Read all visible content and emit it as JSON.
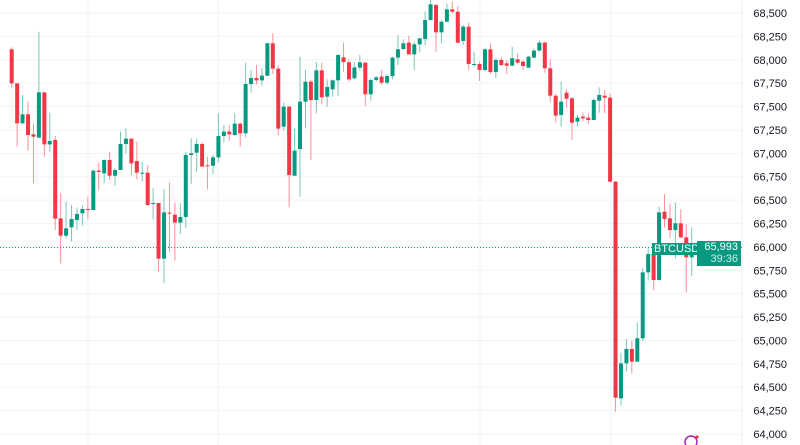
{
  "chart_data": {
    "type": "candlestick",
    "symbol": "BTCUSD",
    "last_price": "65,993",
    "countdown": "39:36",
    "ylim": [
      64000,
      68500
    ],
    "yticks": [
      64000,
      64250,
      64500,
      64750,
      65000,
      65250,
      65500,
      65750,
      66000,
      66250,
      66500,
      66750,
      67000,
      67250,
      67500,
      67750,
      68000,
      68250,
      68500
    ],
    "ytick_labels": [
      "64,000",
      "64,250",
      "64,500",
      "64,750",
      "65,000",
      "65,250",
      "65,500",
      "65,750",
      "66,000",
      "66,250",
      "66,500",
      "66,750",
      "67,000",
      "67,250",
      "67,500",
      "67,750",
      "68,000",
      "68,250",
      "68,500"
    ],
    "grid": true,
    "colors": {
      "up": "#089981",
      "down": "#f23645",
      "grid": "#f2f3f5",
      "text": "#131722"
    },
    "ohlc": [
      [
        68112,
        67748,
        68133,
        67705
      ],
      [
        67748,
        67321,
        67748,
        67071
      ],
      [
        67321,
        67417,
        67624,
        67314
      ],
      [
        67417,
        67196,
        67552,
        67029
      ],
      [
        67203,
        67178,
        67314,
        66680
      ],
      [
        67168,
        67652,
        68300,
        67160
      ],
      [
        67652,
        67096,
        67652,
        66964
      ],
      [
        67096,
        67132,
        67435,
        67018
      ],
      [
        67143,
        66302,
        67185,
        66180
      ],
      [
        66305,
        66120,
        66573,
        65824
      ],
      [
        66120,
        66198,
        66483,
        66091
      ],
      [
        66209,
        66298,
        66448,
        66056
      ],
      [
        66287,
        66352,
        66423,
        66180
      ],
      [
        66359,
        66405,
        66448,
        66227
      ],
      [
        66405,
        66394,
        66537,
        66295
      ],
      [
        66394,
        66815,
        66822,
        66387
      ],
      [
        66815,
        66801,
        66900,
        66608
      ],
      [
        66786,
        66929,
        66936,
        66680
      ],
      [
        66929,
        66761,
        67018,
        66715
      ],
      [
        66761,
        66822,
        66840,
        66655
      ],
      [
        66822,
        67100,
        67232,
        66822
      ],
      [
        67100,
        67157,
        67267,
        67000
      ],
      [
        67157,
        66893,
        67160,
        66761
      ],
      [
        66918,
        66793,
        67125,
        66722
      ],
      [
        66786,
        66793,
        66904,
        66697
      ],
      [
        66793,
        66448,
        66875,
        66441
      ],
      [
        66458,
        66469,
        66626,
        66295
      ],
      [
        66469,
        65874,
        66473,
        65735
      ],
      [
        65874,
        66369,
        66619,
        65611
      ],
      [
        66366,
        66355,
        66690,
        65949
      ],
      [
        66344,
        66259,
        66473,
        65853
      ],
      [
        66259,
        66320,
        66466,
        66138
      ],
      [
        66320,
        66982,
        67018,
        66206
      ],
      [
        66982,
        67000,
        67160,
        66669
      ],
      [
        67007,
        67100,
        67160,
        66797
      ],
      [
        67100,
        66858,
        67114,
        66858
      ],
      [
        66872,
        66868,
        66964,
        66615
      ],
      [
        66868,
        66957,
        66982,
        66779
      ],
      [
        66957,
        67185,
        67428,
        66904
      ],
      [
        67185,
        67232,
        67303,
        67114
      ],
      [
        67232,
        67203,
        67296,
        67135
      ],
      [
        67196,
        67317,
        67428,
        67185
      ],
      [
        67317,
        67214,
        67328,
        67071
      ],
      [
        67214,
        67741,
        67969,
        67171
      ],
      [
        67741,
        67805,
        67891,
        67648
      ],
      [
        67805,
        67780,
        67944,
        67738
      ],
      [
        67780,
        67830,
        67909,
        67723
      ],
      [
        67830,
        68176,
        68183,
        67827
      ],
      [
        68176,
        67905,
        68283,
        67848
      ],
      [
        67905,
        67264,
        67944,
        67189
      ],
      [
        67285,
        67499,
        67542,
        67242
      ],
      [
        67499,
        66768,
        67506,
        66423
      ],
      [
        66761,
        67029,
        67267,
        66758
      ],
      [
        67046,
        67552,
        68033,
        66537
      ],
      [
        67552,
        67766,
        67891,
        67267
      ],
      [
        67766,
        67570,
        67784,
        66929
      ],
      [
        67570,
        67887,
        67976,
        67428
      ],
      [
        67887,
        67599,
        67969,
        67524
      ],
      [
        67606,
        67709,
        67791,
        67499
      ],
      [
        67684,
        67780,
        67791,
        67606
      ],
      [
        67780,
        68051,
        68062,
        67616
      ],
      [
        68026,
        67976,
        68183,
        67873
      ],
      [
        67973,
        67791,
        68005,
        67766
      ],
      [
        67802,
        67919,
        67976,
        67791
      ],
      [
        67916,
        67973,
        68051,
        67884
      ],
      [
        67969,
        67631,
        67976,
        67506
      ],
      [
        67631,
        67784,
        67798,
        67563
      ],
      [
        67784,
        67812,
        67827,
        67766
      ],
      [
        67820,
        67755,
        67891,
        67730
      ],
      [
        67755,
        67827,
        67848,
        67730
      ],
      [
        67827,
        68023,
        68033,
        67791
      ],
      [
        68023,
        68112,
        68265,
        67944
      ],
      [
        68115,
        68176,
        68219,
        68105
      ],
      [
        68183,
        68058,
        68254,
        68051
      ],
      [
        68058,
        68165,
        68194,
        67891
      ],
      [
        68165,
        68229,
        68236,
        68080
      ],
      [
        68222,
        68425,
        68514,
        68158
      ],
      [
        68425,
        68593,
        68639,
        68418
      ],
      [
        68586,
        68293,
        68596,
        68087
      ],
      [
        68293,
        68407,
        68425,
        68176
      ],
      [
        68407,
        68539,
        68603,
        68397
      ],
      [
        68539,
        68514,
        68621,
        68496
      ],
      [
        68514,
        68183,
        68575,
        68176
      ],
      [
        68201,
        68354,
        68372,
        68158
      ],
      [
        68354,
        67955,
        68397,
        67891
      ],
      [
        67944,
        67955,
        68087,
        67926
      ],
      [
        67955,
        67891,
        67980,
        67773
      ],
      [
        67891,
        68112,
        68122,
        67873
      ],
      [
        68112,
        67869,
        68176,
        67848
      ],
      [
        67869,
        67998,
        68016,
        67802
      ],
      [
        67998,
        67944,
        68026,
        67934
      ],
      [
        67962,
        67937,
        67998,
        67848
      ],
      [
        67937,
        68016,
        68140,
        67934
      ],
      [
        68005,
        67969,
        68069,
        67951
      ],
      [
        67980,
        67934,
        67998,
        67891
      ],
      [
        67916,
        68033,
        68040,
        67909
      ],
      [
        68023,
        68098,
        68122,
        68016
      ],
      [
        68098,
        68183,
        68204,
        68087
      ],
      [
        68183,
        67909,
        68194,
        67862
      ],
      [
        67909,
        67616,
        68005,
        67545
      ],
      [
        67616,
        67403,
        67634,
        67331
      ],
      [
        67410,
        67552,
        67766,
        67285
      ],
      [
        67648,
        67584,
        67684,
        67488
      ],
      [
        67588,
        67328,
        67599,
        67143
      ],
      [
        67339,
        67381,
        67410,
        67285
      ],
      [
        67392,
        67374,
        67435,
        67339
      ],
      [
        67381,
        67356,
        67428,
        67314
      ],
      [
        67356,
        67570,
        67588,
        67367
      ],
      [
        67563,
        67624,
        67705,
        67435
      ],
      [
        67616,
        67595,
        67677,
        67428
      ],
      [
        67595,
        66697,
        67641,
        66690
      ],
      [
        66697,
        64388,
        66702,
        64239
      ],
      [
        64381,
        64755,
        64869,
        64303
      ],
      [
        64755,
        64909,
        65015,
        64666
      ],
      [
        64909,
        64773,
        64998,
        64648
      ],
      [
        64773,
        65023,
        65190,
        64773
      ],
      [
        65023,
        65728,
        65771,
        64994
      ],
      [
        65728,
        65924,
        65985,
        65639
      ],
      [
        65924,
        65646,
        65931,
        65539
      ],
      [
        65646,
        66369,
        66430,
        65639
      ],
      [
        66376,
        66298,
        66565,
        66209
      ],
      [
        66305,
        66180,
        66458,
        66091
      ],
      [
        66180,
        66252,
        66476,
        65878
      ],
      [
        66252,
        66102,
        66401,
        66091
      ],
      [
        66102,
        65888,
        66245,
        65514
      ],
      [
        65888,
        65993,
        66209,
        65693
      ]
    ]
  }
}
